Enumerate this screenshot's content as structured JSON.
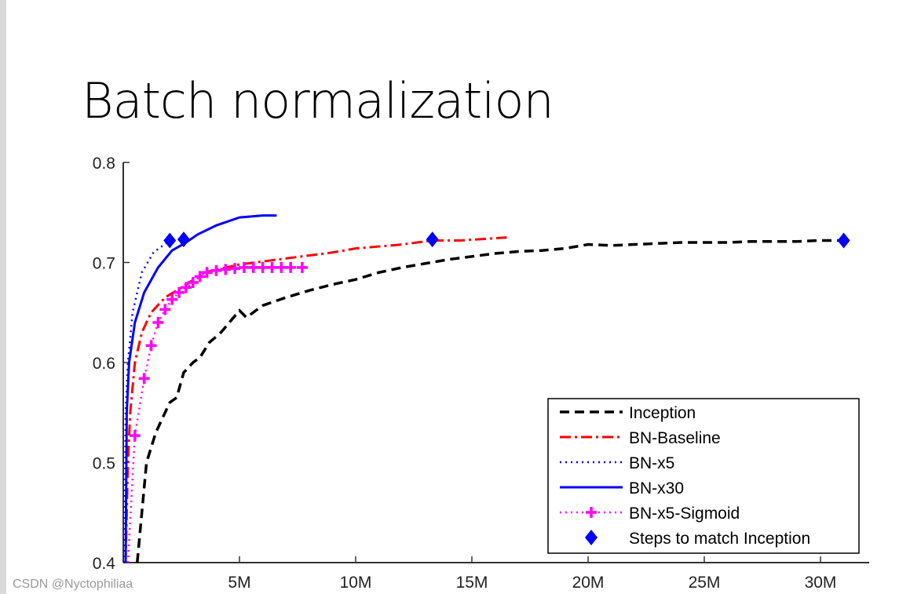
{
  "slide_title": "Batch normalization",
  "watermark": "CSDN @Nyctophiliaa",
  "chart_data": {
    "type": "line",
    "title": "",
    "xlabel": "",
    "ylabel": "",
    "xlim": [
      0,
      32
    ],
    "ylim": [
      0.4,
      0.8
    ],
    "x_unit": "M",
    "x_ticks": [
      "5M",
      "10M",
      "15M",
      "20M",
      "25M",
      "30M"
    ],
    "x_tick_values": [
      5,
      10,
      15,
      20,
      25,
      30
    ],
    "y_ticks": [
      "0.4",
      "0.5",
      "0.6",
      "0.7",
      "0.8"
    ],
    "y_tick_values": [
      0.4,
      0.5,
      0.6,
      0.7,
      0.8
    ],
    "grid": false,
    "legend_position": "bottom-right",
    "series": [
      {
        "name": "Inception",
        "color": "#000000",
        "style": "dashed",
        "points": [
          [
            0.6,
            0.4
          ],
          [
            0.8,
            0.45
          ],
          [
            1.0,
            0.5
          ],
          [
            1.4,
            0.53
          ],
          [
            2,
            0.56
          ],
          [
            2.3,
            0.565
          ],
          [
            2.6,
            0.59
          ],
          [
            3,
            0.6
          ],
          [
            3.3,
            0.605
          ],
          [
            3.7,
            0.62
          ],
          [
            4.2,
            0.63
          ],
          [
            5,
            0.652
          ],
          [
            5.3,
            0.645
          ],
          [
            6,
            0.657
          ],
          [
            7,
            0.665
          ],
          [
            8,
            0.672
          ],
          [
            9,
            0.678
          ],
          [
            10,
            0.683
          ],
          [
            11,
            0.69
          ],
          [
            12,
            0.695
          ],
          [
            13,
            0.699
          ],
          [
            14,
            0.703
          ],
          [
            15,
            0.706
          ],
          [
            16,
            0.709
          ],
          [
            17,
            0.711
          ],
          [
            18,
            0.712
          ],
          [
            19,
            0.714
          ],
          [
            20,
            0.718
          ],
          [
            21,
            0.717
          ],
          [
            22,
            0.718
          ],
          [
            23,
            0.719
          ],
          [
            24,
            0.72
          ],
          [
            25,
            0.72
          ],
          [
            26,
            0.72
          ],
          [
            27,
            0.721
          ],
          [
            28,
            0.721
          ],
          [
            29,
            0.721
          ],
          [
            30,
            0.722
          ],
          [
            31,
            0.722
          ]
        ]
      },
      {
        "name": "BN-Baseline",
        "color": "#ff0000",
        "style": "dashdot",
        "points": [
          [
            0.1,
            0.4
          ],
          [
            0.2,
            0.5
          ],
          [
            0.3,
            0.55
          ],
          [
            0.5,
            0.6
          ],
          [
            0.8,
            0.63
          ],
          [
            1.2,
            0.65
          ],
          [
            1.8,
            0.665
          ],
          [
            2.5,
            0.675
          ],
          [
            3.5,
            0.69
          ],
          [
            5,
            0.698
          ],
          [
            7,
            0.704
          ],
          [
            9,
            0.71
          ],
          [
            10,
            0.714
          ],
          [
            12,
            0.718
          ],
          [
            13.3,
            0.722
          ],
          [
            14.5,
            0.722
          ],
          [
            16.5,
            0.725
          ]
        ]
      },
      {
        "name": "BN-x5",
        "color": "#0000ff",
        "style": "dotted",
        "points": [
          [
            0.05,
            0.4
          ],
          [
            0.1,
            0.55
          ],
          [
            0.2,
            0.6
          ],
          [
            0.4,
            0.65
          ],
          [
            0.8,
            0.69
          ],
          [
            1.3,
            0.71
          ],
          [
            2.0,
            0.722
          ]
        ]
      },
      {
        "name": "BN-x30",
        "color": "#0000ff",
        "style": "solid",
        "points": [
          [
            0.1,
            0.4
          ],
          [
            0.15,
            0.55
          ],
          [
            0.25,
            0.6
          ],
          [
            0.5,
            0.64
          ],
          [
            0.9,
            0.67
          ],
          [
            1.5,
            0.695
          ],
          [
            2.1,
            0.712
          ],
          [
            2.7,
            0.72
          ],
          [
            3.2,
            0.728
          ],
          [
            4,
            0.737
          ],
          [
            5,
            0.745
          ],
          [
            6,
            0.747
          ],
          [
            6.6,
            0.747
          ]
        ]
      },
      {
        "name": "BN-x5-Sigmoid",
        "color": "#ff00ff",
        "style": "dotted-plus",
        "points": [
          [
            0.2,
            0.4
          ],
          [
            0.5,
            0.527
          ],
          [
            0.9,
            0.584
          ],
          [
            1.2,
            0.617
          ],
          [
            1.5,
            0.64
          ],
          [
            1.8,
            0.653
          ],
          [
            2.1,
            0.663
          ],
          [
            2.4,
            0.67
          ],
          [
            2.7,
            0.675
          ],
          [
            3,
            0.68
          ],
          [
            3.3,
            0.686
          ],
          [
            3.6,
            0.69
          ],
          [
            4,
            0.692
          ],
          [
            4.4,
            0.693
          ],
          [
            4.8,
            0.694
          ],
          [
            5.2,
            0.695
          ],
          [
            5.6,
            0.695
          ],
          [
            6,
            0.695
          ],
          [
            6.4,
            0.695
          ],
          [
            6.8,
            0.695
          ],
          [
            7.2,
            0.695
          ],
          [
            7.7,
            0.695
          ]
        ]
      },
      {
        "name": "Steps to match Inception",
        "color": "#0000ff",
        "style": "diamond-markers",
        "points": [
          [
            2.0,
            0.722
          ],
          [
            2.6,
            0.723
          ],
          [
            13.3,
            0.723
          ],
          [
            31,
            0.722
          ]
        ]
      }
    ]
  }
}
